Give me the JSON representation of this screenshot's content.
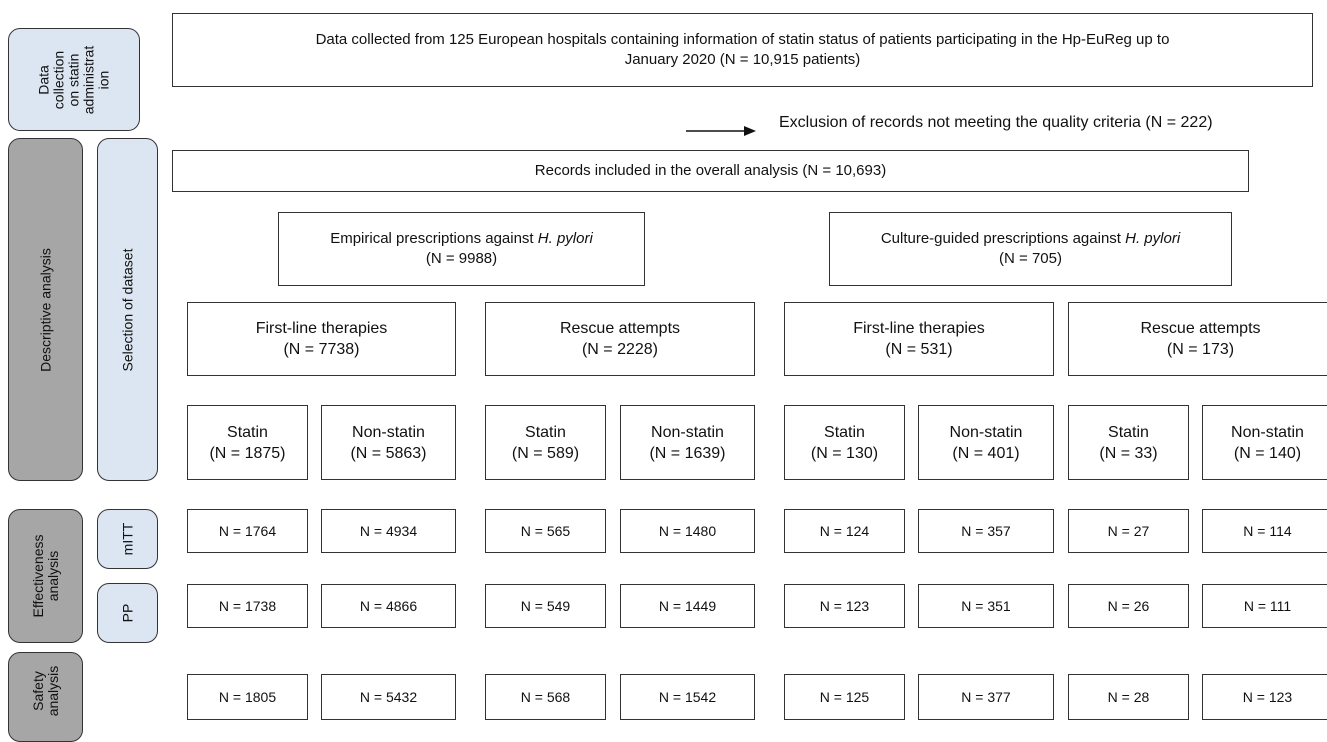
{
  "top_box": {
    "line1": "Data collected from 125 European hospitals containing information of statin status of patients participating in the Hp-EuReg up to",
    "line2": "January 2020 (N = 10,915 patients)"
  },
  "exclusion": "Exclusion of records not meeting the quality criteria (N = 222)",
  "records_box": "Records included in the overall analysis (N = 10,693)",
  "empirical": {
    "label_prefix": "Empirical prescriptions against ",
    "organism": "H. pylori",
    "count": "(N = 9988)"
  },
  "culture": {
    "label_prefix": "Culture-guided prescriptions against ",
    "organism": "H. pylori",
    "count": "(N = 705)"
  },
  "therapy_groups": [
    {
      "label": "First-line therapies",
      "count": "(N = 7738)"
    },
    {
      "label": "Rescue attempts",
      "count": "(N = 2228)"
    },
    {
      "label": "First-line therapies",
      "count": "(N = 531)"
    },
    {
      "label": "Rescue attempts",
      "count": "(N = 173)"
    }
  ],
  "statin_groups": [
    {
      "label": "Statin",
      "count": "(N = 1875)"
    },
    {
      "label": "Non-statin",
      "count": "(N = 5863)"
    },
    {
      "label": "Statin",
      "count": "(N = 589)"
    },
    {
      "label": "Non-statin",
      "count": "(N = 1639)"
    },
    {
      "label": "Statin",
      "count": "(N = 130)"
    },
    {
      "label": "Non-statin",
      "count": "(N = 401)"
    },
    {
      "label": "Statin",
      "count": "(N = 33)"
    },
    {
      "label": "Non-statin",
      "count": "(N = 140)"
    }
  ],
  "mitt_row": [
    "N = 1764",
    "N = 4934",
    "N = 565",
    "N = 1480",
    "N = 124",
    "N = 357",
    "N = 27",
    "N = 114"
  ],
  "pp_row": [
    "N = 1738",
    "N = 4866",
    "N = 549",
    "N = 1449",
    "N = 123",
    "N = 351",
    "N = 26",
    "N = 111"
  ],
  "safety_row": [
    "N = 1805",
    "N = 5432",
    "N = 568",
    "N = 1542",
    "N = 125",
    "N = 377",
    "N = 28",
    "N = 123"
  ],
  "side_labels": {
    "data_collection_lines": [
      "Data",
      "collection",
      "on statin",
      "administrat",
      "ion"
    ],
    "descriptive": "Descriptive analysis",
    "selection": "Selection of dataset",
    "effectiveness_lines": [
      "Effectiveness",
      "analysis"
    ],
    "mitt": "mITT",
    "pp": "PP",
    "safety_lines": [
      "Safety",
      "analysis"
    ]
  },
  "colors": {
    "blue_panel": "#dce6f2",
    "grey_panel": "#a6a6a6",
    "border": "#333333"
  }
}
